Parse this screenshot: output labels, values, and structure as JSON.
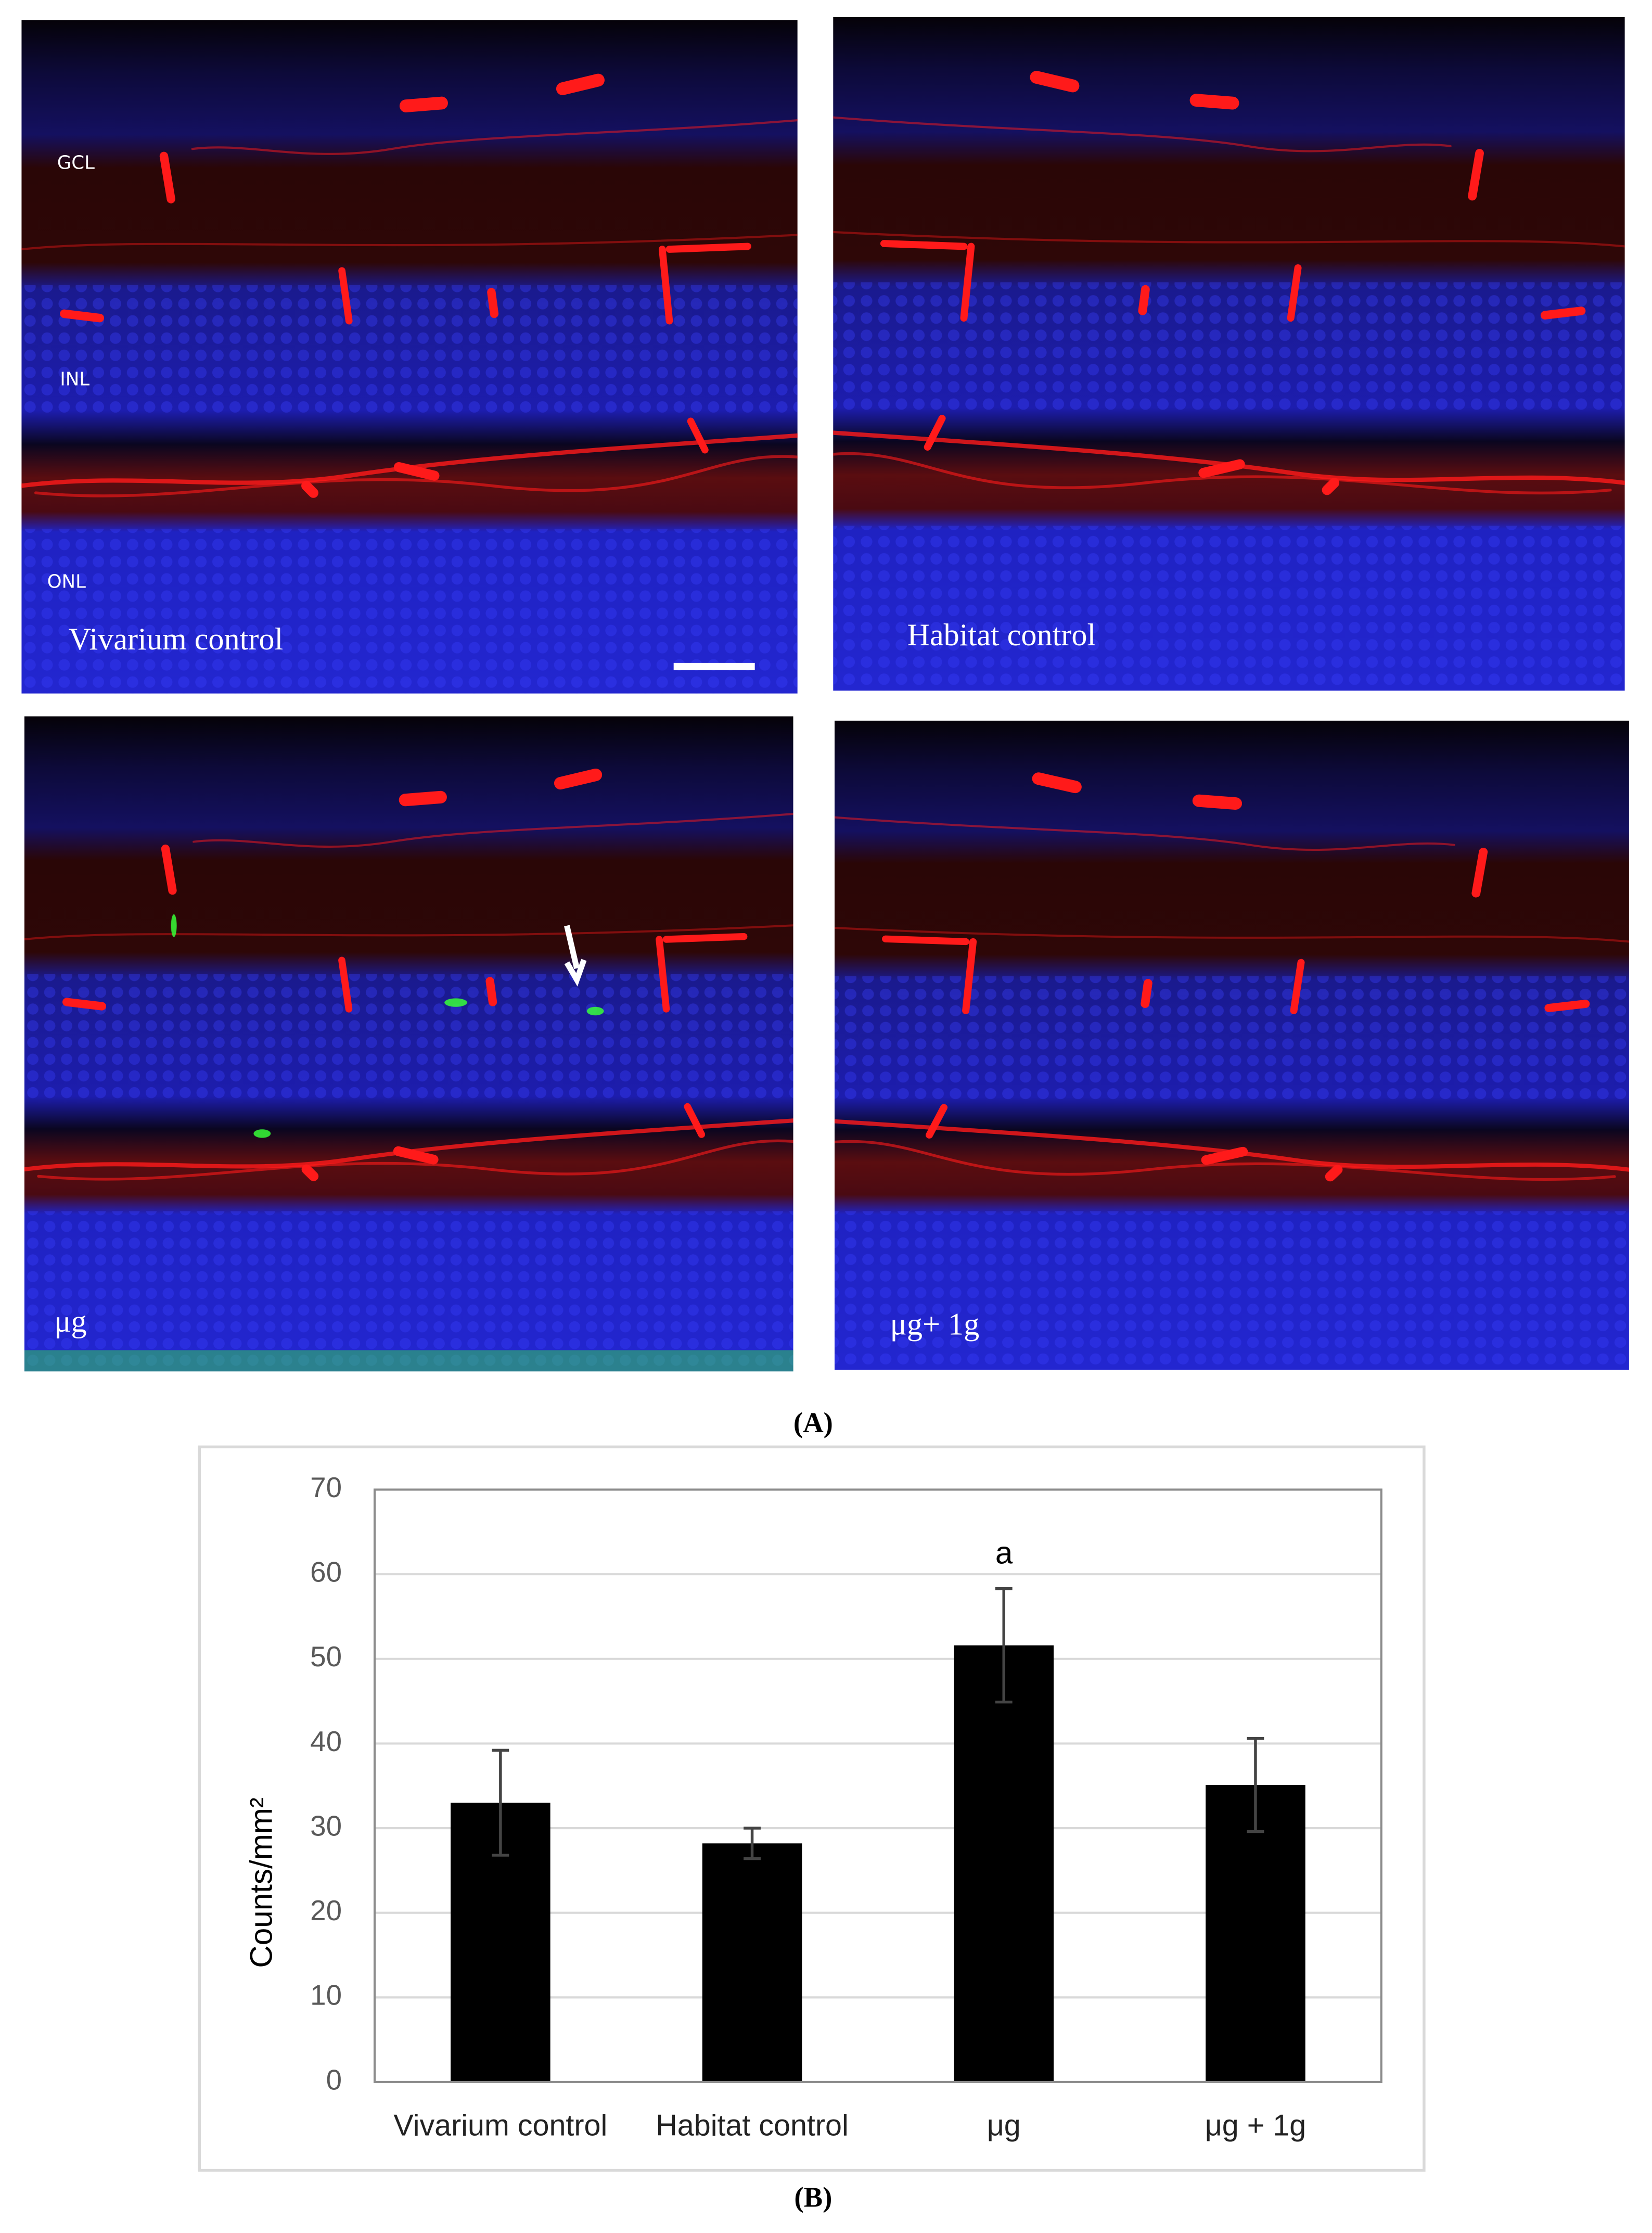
{
  "panels": [
    {
      "label": "Vivarium control"
    },
    {
      "label": "Habitat control"
    },
    {
      "label": "μg"
    },
    {
      "label": "μg+ 1g"
    }
  ],
  "layers": [
    "GCL",
    "INL",
    "ONL"
  ],
  "panel_labels": [
    "(A)",
    "(B)"
  ],
  "chart_data": {
    "type": "bar",
    "categories": [
      "Vivarium control",
      "Habitat control",
      "μg",
      "μg + 1g"
    ],
    "values": [
      33,
      28.2,
      51.6,
      35.1
    ],
    "errors": [
      6.2,
      1.8,
      6.7,
      5.5
    ],
    "color": "#000000",
    "ylabel": "Counts/mm²",
    "annotation": "a",
    "ylim": [
      0,
      70
    ],
    "yticks": [
      0,
      10,
      20,
      30,
      40,
      50,
      60,
      70
    ],
    "grid": true
  }
}
